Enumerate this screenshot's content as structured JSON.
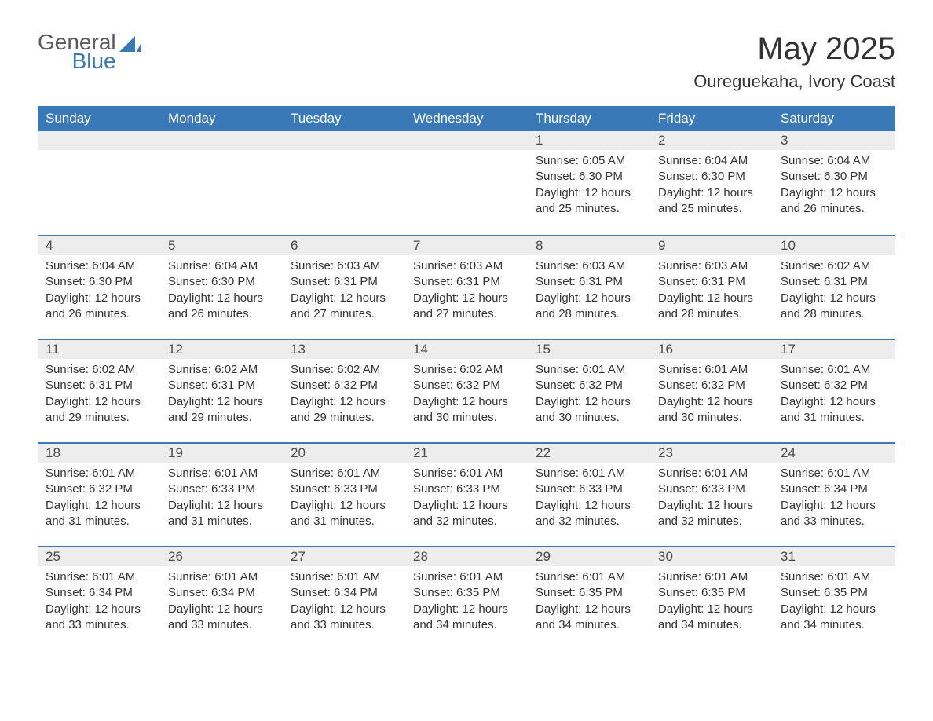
{
  "brand": {
    "name_part1": "General",
    "name_part2": "Blue",
    "color_general": "#5a5a5a",
    "color_blue": "#3a79b7",
    "sail_color": "#3a79b7"
  },
  "header": {
    "month_title": "May 2025",
    "location": "Oureguekaha, Ivory Coast"
  },
  "colors": {
    "header_bg": "#3a79b7",
    "header_text": "#ffffff",
    "daynum_bg": "#ededed",
    "daynum_border": "#3a79b7",
    "body_text": "#333333",
    "page_bg": "#ffffff"
  },
  "typography": {
    "month_title_fontsize": 40,
    "location_fontsize": 22,
    "dayheader_fontsize": 17,
    "daynum_fontsize": 17,
    "detail_fontsize": 15,
    "font_family": "Arial"
  },
  "calendar": {
    "day_headers": [
      "Sunday",
      "Monday",
      "Tuesday",
      "Wednesday",
      "Thursday",
      "Friday",
      "Saturday"
    ],
    "weeks": [
      [
        null,
        null,
        null,
        null,
        {
          "n": "1",
          "sunrise": "6:05 AM",
          "sunset": "6:30 PM",
          "daylight": "12 hours and 25 minutes."
        },
        {
          "n": "2",
          "sunrise": "6:04 AM",
          "sunset": "6:30 PM",
          "daylight": "12 hours and 25 minutes."
        },
        {
          "n": "3",
          "sunrise": "6:04 AM",
          "sunset": "6:30 PM",
          "daylight": "12 hours and 26 minutes."
        }
      ],
      [
        {
          "n": "4",
          "sunrise": "6:04 AM",
          "sunset": "6:30 PM",
          "daylight": "12 hours and 26 minutes."
        },
        {
          "n": "5",
          "sunrise": "6:04 AM",
          "sunset": "6:30 PM",
          "daylight": "12 hours and 26 minutes."
        },
        {
          "n": "6",
          "sunrise": "6:03 AM",
          "sunset": "6:31 PM",
          "daylight": "12 hours and 27 minutes."
        },
        {
          "n": "7",
          "sunrise": "6:03 AM",
          "sunset": "6:31 PM",
          "daylight": "12 hours and 27 minutes."
        },
        {
          "n": "8",
          "sunrise": "6:03 AM",
          "sunset": "6:31 PM",
          "daylight": "12 hours and 28 minutes."
        },
        {
          "n": "9",
          "sunrise": "6:03 AM",
          "sunset": "6:31 PM",
          "daylight": "12 hours and 28 minutes."
        },
        {
          "n": "10",
          "sunrise": "6:02 AM",
          "sunset": "6:31 PM",
          "daylight": "12 hours and 28 minutes."
        }
      ],
      [
        {
          "n": "11",
          "sunrise": "6:02 AM",
          "sunset": "6:31 PM",
          "daylight": "12 hours and 29 minutes."
        },
        {
          "n": "12",
          "sunrise": "6:02 AM",
          "sunset": "6:31 PM",
          "daylight": "12 hours and 29 minutes."
        },
        {
          "n": "13",
          "sunrise": "6:02 AM",
          "sunset": "6:32 PM",
          "daylight": "12 hours and 29 minutes."
        },
        {
          "n": "14",
          "sunrise": "6:02 AM",
          "sunset": "6:32 PM",
          "daylight": "12 hours and 30 minutes."
        },
        {
          "n": "15",
          "sunrise": "6:01 AM",
          "sunset": "6:32 PM",
          "daylight": "12 hours and 30 minutes."
        },
        {
          "n": "16",
          "sunrise": "6:01 AM",
          "sunset": "6:32 PM",
          "daylight": "12 hours and 30 minutes."
        },
        {
          "n": "17",
          "sunrise": "6:01 AM",
          "sunset": "6:32 PM",
          "daylight": "12 hours and 31 minutes."
        }
      ],
      [
        {
          "n": "18",
          "sunrise": "6:01 AM",
          "sunset": "6:32 PM",
          "daylight": "12 hours and 31 minutes."
        },
        {
          "n": "19",
          "sunrise": "6:01 AM",
          "sunset": "6:33 PM",
          "daylight": "12 hours and 31 minutes."
        },
        {
          "n": "20",
          "sunrise": "6:01 AM",
          "sunset": "6:33 PM",
          "daylight": "12 hours and 31 minutes."
        },
        {
          "n": "21",
          "sunrise": "6:01 AM",
          "sunset": "6:33 PM",
          "daylight": "12 hours and 32 minutes."
        },
        {
          "n": "22",
          "sunrise": "6:01 AM",
          "sunset": "6:33 PM",
          "daylight": "12 hours and 32 minutes."
        },
        {
          "n": "23",
          "sunrise": "6:01 AM",
          "sunset": "6:33 PM",
          "daylight": "12 hours and 32 minutes."
        },
        {
          "n": "24",
          "sunrise": "6:01 AM",
          "sunset": "6:34 PM",
          "daylight": "12 hours and 33 minutes."
        }
      ],
      [
        {
          "n": "25",
          "sunrise": "6:01 AM",
          "sunset": "6:34 PM",
          "daylight": "12 hours and 33 minutes."
        },
        {
          "n": "26",
          "sunrise": "6:01 AM",
          "sunset": "6:34 PM",
          "daylight": "12 hours and 33 minutes."
        },
        {
          "n": "27",
          "sunrise": "6:01 AM",
          "sunset": "6:34 PM",
          "daylight": "12 hours and 33 minutes."
        },
        {
          "n": "28",
          "sunrise": "6:01 AM",
          "sunset": "6:35 PM",
          "daylight": "12 hours and 34 minutes."
        },
        {
          "n": "29",
          "sunrise": "6:01 AM",
          "sunset": "6:35 PM",
          "daylight": "12 hours and 34 minutes."
        },
        {
          "n": "30",
          "sunrise": "6:01 AM",
          "sunset": "6:35 PM",
          "daylight": "12 hours and 34 minutes."
        },
        {
          "n": "31",
          "sunrise": "6:01 AM",
          "sunset": "6:35 PM",
          "daylight": "12 hours and 34 minutes."
        }
      ]
    ],
    "labels": {
      "sunrise_prefix": "Sunrise: ",
      "sunset_prefix": "Sunset: ",
      "daylight_prefix": "Daylight: "
    }
  }
}
